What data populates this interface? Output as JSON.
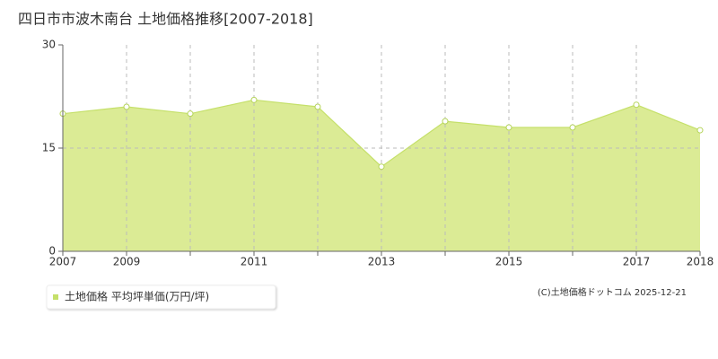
{
  "chart_data": {
    "type": "area",
    "title": "四日市市波木南台 土地価格推移[2007-2018]",
    "categories": [
      "2007",
      "2009",
      null,
      "2011",
      null,
      "2013",
      null,
      "2015",
      null,
      "2017",
      "2018"
    ],
    "series": [
      {
        "name": "土地価格 平均坪単価(万円/坪)",
        "color": "#c5e06a",
        "values": [
          20,
          21,
          20,
          22,
          21,
          12.3,
          18.9,
          18,
          18,
          21.3,
          17.6
        ]
      }
    ],
    "ylim": [
      0,
      30
    ],
    "yticks": [
      0,
      15,
      30
    ],
    "grid": true,
    "copyright": "(C)土地価格ドットコム 2025-12-21"
  }
}
